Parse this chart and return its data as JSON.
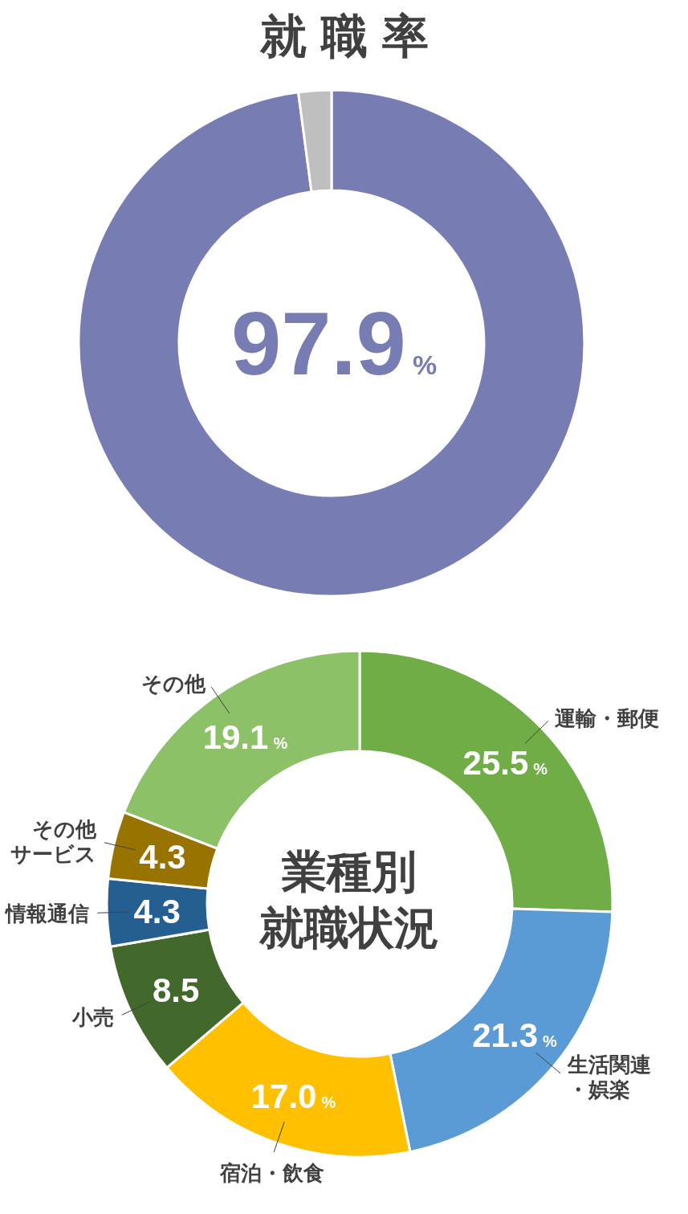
{
  "chart_data": [
    {
      "type": "donut",
      "title": "就職率",
      "categories": [
        null,
        null
      ],
      "values": [
        97.9,
        2.1
      ],
      "colors": [
        "#777cb3",
        "#bfbfbf"
      ],
      "annotations": [
        "97.9%"
      ]
    },
    {
      "type": "donut",
      "title": "業種別就職状況",
      "categories": [
        "運輸・郵便",
        "生活関連・娯楽",
        "宿泊・飲食",
        "小売",
        "情報通信",
        "その他サービス",
        "その他"
      ],
      "values": [
        25.5,
        21.3,
        17.0,
        8.5,
        4.3,
        4.3,
        19.1
      ],
      "colors": [
        "#70ad47",
        "#5b9bd5",
        "#ffc000",
        "#43682b",
        "#255e91",
        "#997300",
        "#8cc168"
      ],
      "value_labels": [
        "25.5%",
        "21.3%",
        "17.0%",
        "8.5",
        "4.3",
        "4.3",
        "19.1%"
      ]
    }
  ]
}
